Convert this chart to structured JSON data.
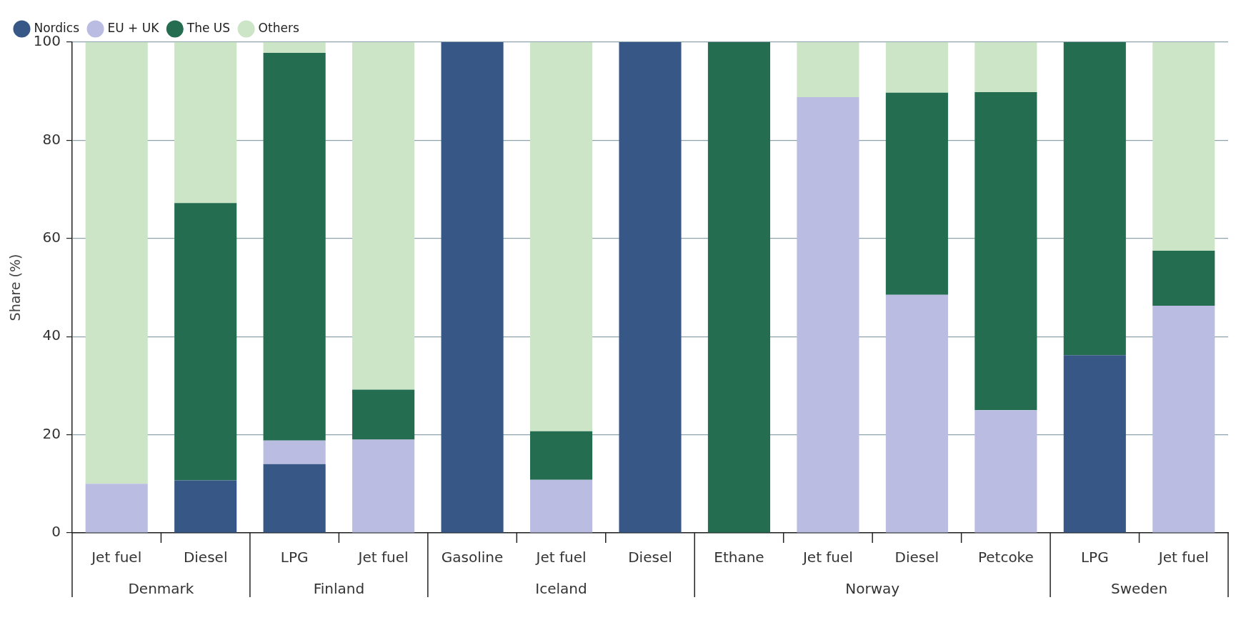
{
  "chart_data": {
    "type": "bar",
    "stacked": true,
    "ylabel": "Share (%)",
    "ylim": [
      0,
      100
    ],
    "yticks": [
      0,
      20,
      40,
      60,
      80,
      100
    ],
    "grid": "y",
    "legend": "top left",
    "categories": [
      "Jet fuel",
      "Diesel",
      "LPG",
      "Jet fuel",
      "Gasoline",
      "Jet fuel",
      "Diesel",
      "Ethane",
      "Jet fuel",
      "Diesel",
      "Petcoke",
      "LPG",
      "Jet fuel"
    ],
    "annotations": [
      "Denmark",
      "Finland",
      "Iceland",
      "Norway",
      "Sweden"
    ],
    "series": [
      {
        "name": "Nordics",
        "color": "#375886",
        "values": [
          0,
          10.7,
          14,
          0,
          100,
          0,
          100,
          0,
          0,
          0,
          0,
          36.2,
          0
        ]
      },
      {
        "name": "EU + UK",
        "color": "#babce2",
        "values": [
          10,
          0,
          4.8,
          19,
          0,
          10.8,
          0,
          0,
          88.8,
          48.5,
          25,
          0,
          46.3
        ]
      },
      {
        "name": "The US",
        "color": "#256d50",
        "values": [
          0,
          56.5,
          79,
          10.2,
          0,
          9.9,
          0,
          100,
          0,
          41.2,
          64.8,
          63.8,
          11.2
        ]
      },
      {
        "name": "Others",
        "color": "#cde5c7",
        "values": [
          90,
          32.8,
          2.2,
          70.8,
          0,
          79.3,
          0,
          0,
          11.2,
          10.3,
          10.2,
          0,
          42.5
        ]
      }
    ]
  }
}
